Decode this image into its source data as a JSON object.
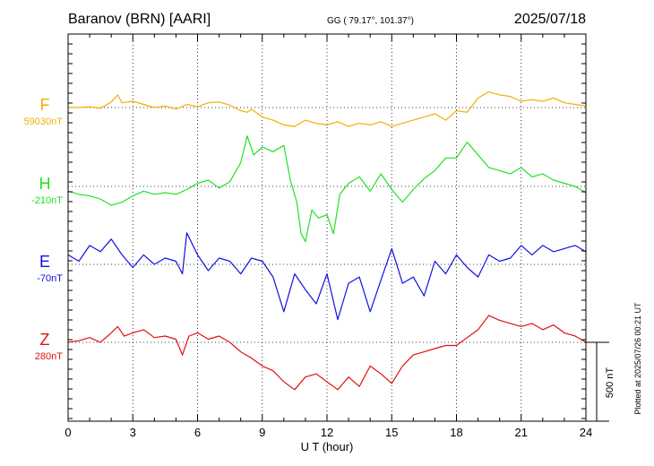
{
  "header": {
    "station": "Baranov (BRN)  [AARI]",
    "coords": "GG ( 79.17°, 101.37°)",
    "date": "2025/07/18"
  },
  "footer": {
    "plotted_note": "Plotted at 2025/07/26 00:21 UT"
  },
  "scale_bar_label": "500 nT",
  "chart_data": {
    "type": "line",
    "xlabel": "U T (hour)",
    "xlim": [
      0,
      24
    ],
    "xticks": [
      "0",
      "3",
      "6",
      "9",
      "12",
      "15",
      "18",
      "21",
      "24"
    ],
    "grid": true,
    "y_unit": "nT",
    "scale_bar_nT": 500,
    "series": [
      {
        "name": "F",
        "baseline_label": "59030nT",
        "color": "#f0b000",
        "baseline_nT": 59030,
        "x": [
          0,
          0.5,
          1,
          1.5,
          2,
          2.3,
          2.5,
          3,
          3.5,
          4,
          4.5,
          5,
          5.5,
          6,
          6.5,
          7,
          7.5,
          8,
          8.3,
          8.5,
          9,
          9.5,
          10,
          10.5,
          11,
          11.5,
          12,
          12.5,
          13,
          13.5,
          14,
          14.5,
          15,
          15.5,
          16,
          16.5,
          17,
          17.5,
          18,
          18.5,
          19,
          19.5,
          20,
          20.5,
          21,
          21.5,
          22,
          22.5,
          23,
          23.5,
          24
        ],
        "values": [
          0,
          0,
          5,
          -5,
          35,
          80,
          30,
          40,
          20,
          0,
          10,
          -10,
          20,
          5,
          30,
          35,
          15,
          -20,
          -30,
          -10,
          -60,
          -80,
          -110,
          -120,
          -80,
          -100,
          -110,
          -90,
          -120,
          -100,
          -110,
          -90,
          -120,
          -100,
          -80,
          -60,
          -40,
          -80,
          -20,
          -30,
          60,
          100,
          80,
          70,
          40,
          50,
          40,
          60,
          30,
          20,
          10
        ]
      },
      {
        "name": "H",
        "baseline_label": "-210nT",
        "color": "#22e022",
        "baseline_nT": -210,
        "x": [
          0,
          0.5,
          1,
          1.5,
          2,
          2.5,
          3,
          3.5,
          4,
          4.5,
          5,
          5.5,
          6,
          6.5,
          7,
          7.5,
          8,
          8.3,
          8.6,
          9,
          9.5,
          10,
          10.3,
          10.6,
          10.8,
          11,
          11.3,
          11.6,
          12,
          12.3,
          12.6,
          13,
          13.5,
          14,
          14.5,
          15,
          15.5,
          16,
          16.5,
          17,
          17.5,
          18,
          18.5,
          19,
          19.5,
          20,
          20.5,
          21,
          21.5,
          22,
          22.5,
          23,
          23.5,
          24
        ],
        "values": [
          -30,
          -50,
          -60,
          -80,
          -120,
          -100,
          -60,
          -30,
          -50,
          -40,
          -50,
          -20,
          20,
          40,
          -10,
          30,
          150,
          320,
          200,
          250,
          220,
          260,
          40,
          -100,
          -300,
          -350,
          -150,
          -200,
          -180,
          -300,
          -50,
          20,
          60,
          -30,
          80,
          -20,
          -100,
          -20,
          50,
          100,
          180,
          180,
          280,
          200,
          120,
          100,
          80,
          120,
          60,
          80,
          40,
          20,
          0,
          -40
        ]
      },
      {
        "name": "E",
        "baseline_label": "-70nT",
        "color": "#1010e0",
        "baseline_nT": -70,
        "x": [
          0,
          0.5,
          1,
          1.5,
          2,
          2.5,
          3,
          3.5,
          4,
          4.5,
          5,
          5.3,
          5.5,
          6,
          6.5,
          7,
          7.5,
          8,
          8.5,
          9,
          9.5,
          10,
          10.5,
          11,
          11.5,
          12,
          12.5,
          13,
          13.5,
          14,
          14.5,
          15,
          15.5,
          16,
          16.5,
          17,
          17.5,
          18,
          18.5,
          19,
          19.5,
          20,
          20.5,
          21,
          21.5,
          22,
          22.5,
          23,
          23.5,
          24
        ],
        "values": [
          60,
          20,
          120,
          80,
          160,
          60,
          -20,
          60,
          0,
          40,
          20,
          -60,
          200,
          60,
          -40,
          40,
          20,
          -60,
          40,
          20,
          -80,
          -300,
          -60,
          -160,
          -250,
          -60,
          -350,
          -120,
          -80,
          -300,
          -100,
          100,
          -120,
          -80,
          -200,
          20,
          -60,
          60,
          -20,
          -80,
          60,
          20,
          40,
          120,
          60,
          120,
          80,
          100,
          120,
          80
        ]
      },
      {
        "name": "Z",
        "baseline_label": "280nT",
        "color": "#e01010",
        "baseline_nT": 280,
        "x": [
          0,
          0.5,
          1,
          1.5,
          2,
          2.3,
          2.6,
          3,
          3.5,
          4,
          4.5,
          5,
          5.3,
          5.6,
          6,
          6.5,
          7,
          7.5,
          8,
          8.5,
          9,
          9.5,
          10,
          10.5,
          11,
          11.5,
          12,
          12.5,
          13,
          13.5,
          14,
          14.5,
          15,
          15.5,
          16,
          16.5,
          17,
          17.5,
          18,
          18.5,
          19,
          19.5,
          20,
          20.5,
          21,
          21.5,
          22,
          22.5,
          23,
          23.5,
          24
        ],
        "values": [
          0,
          10,
          30,
          0,
          60,
          100,
          40,
          60,
          80,
          30,
          40,
          20,
          -80,
          40,
          60,
          20,
          40,
          0,
          -60,
          -100,
          -150,
          -180,
          -250,
          -300,
          -220,
          -200,
          -250,
          -300,
          -220,
          -280,
          -150,
          -200,
          -260,
          -150,
          -80,
          -60,
          -40,
          -20,
          -20,
          30,
          80,
          170,
          140,
          120,
          100,
          120,
          80,
          110,
          60,
          40,
          0
        ]
      }
    ]
  }
}
